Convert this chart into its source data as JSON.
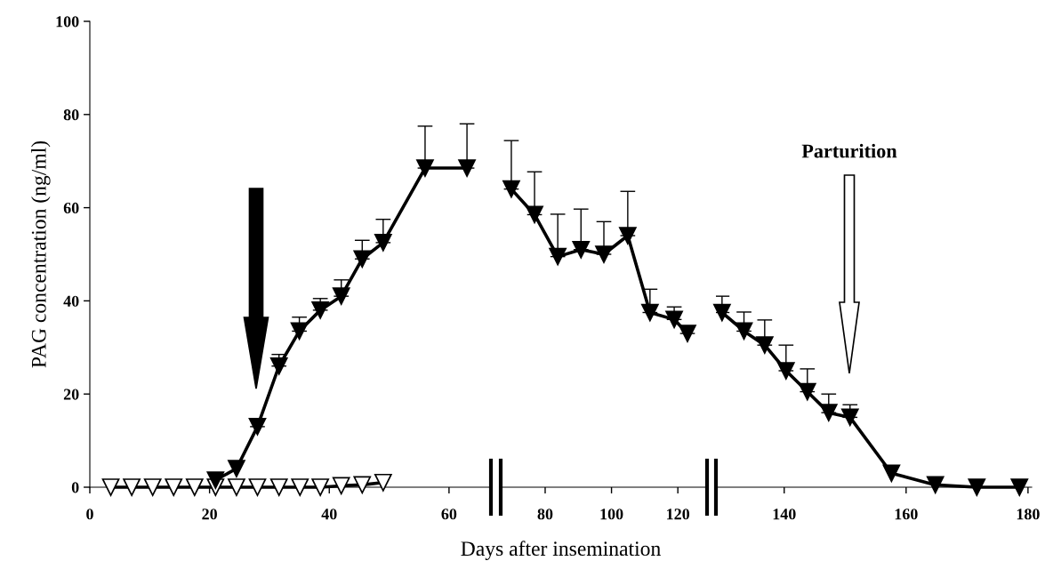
{
  "chart_data": [
    {
      "type": "line",
      "ylabel": "PAG concentration (ng/ml)",
      "xlim": [
        0,
        67
      ],
      "xticks": [
        0,
        20,
        40,
        60
      ],
      "ylim": [
        0,
        100
      ],
      "yticks": [
        0,
        20,
        40,
        60,
        80,
        100
      ],
      "grid": false,
      "marker": "triangle",
      "line_style": "solid",
      "series": [
        {
          "color": "#ffffff",
          "x": [
            3.5,
            7,
            10.5,
            14,
            17.5,
            21,
            24.5,
            28,
            31.6,
            35.1,
            38.5,
            42,
            45.5,
            49
          ],
          "values": [
            0,
            0,
            0,
            0,
            0,
            0,
            0,
            0,
            0,
            0,
            0,
            0.3,
            0.5,
            1
          ]
        },
        {
          "color": "#000000",
          "x": [
            21,
            24.5,
            28,
            31.6,
            35,
            38.5,
            42,
            45.5,
            49,
            56,
            63
          ],
          "values": [
            1.5,
            4,
            13,
            26,
            33.5,
            38,
            41,
            49,
            52.5,
            68.5,
            68.5
          ],
          "errors": [
            null,
            null,
            [
              13,
              14.5
            ],
            [
              26,
              28.5
            ],
            [
              33.5,
              36.5
            ],
            [
              38,
              40.5
            ],
            [
              41,
              44.5
            ],
            [
              49,
              53
            ],
            [
              52.5,
              57.5
            ],
            [
              68.5,
              77.5
            ],
            [
              68.5,
              78
            ]
          ]
        }
      ]
    },
    {
      "type": "line",
      "xlabel": "Days after insemination",
      "xlim": [
        66.6,
        128.8
      ],
      "xticks": [
        80,
        100,
        120
      ],
      "ylim": [
        0,
        100
      ],
      "tick_labels": "x",
      "grid": false,
      "marker": "triangle",
      "line_style": "solid",
      "series": [
        {
          "color": "#000000",
          "x": [
            69.8,
            76.8,
            83.8,
            90.8,
            97.7,
            104.9,
            111.6,
            118.9,
            122.9
          ],
          "values": [
            64,
            58.5,
            49.5,
            51,
            50,
            54,
            37.5,
            36,
            33
          ],
          "errors": [
            [
              64,
              74.4
            ],
            [
              58.5,
              67.7
            ],
            [
              49.5,
              58.6
            ],
            [
              51,
              59.7
            ],
            [
              50,
              57
            ],
            [
              54,
              63.5
            ],
            [
              37.5,
              42.5
            ],
            [
              36,
              38.7
            ],
            [
              33,
              34.5
            ]
          ]
        }
      ]
    },
    {
      "type": "line",
      "xlim": [
        128.8,
        180.6
      ],
      "xticks": [
        140,
        160,
        180
      ],
      "ylim": [
        0,
        100
      ],
      "tick_labels": "x",
      "grid": false,
      "marker": "triangle",
      "line_style": "solid",
      "series": [
        {
          "color": "#000000",
          "x": [
            129.8,
            133.4,
            136.8,
            140.3,
            143.8,
            147.3,
            150.8,
            157.6,
            164.8,
            171.6,
            178.6
          ],
          "values": [
            37.5,
            33.5,
            30.5,
            25,
            20.5,
            16,
            15,
            3,
            0.5,
            0,
            0
          ],
          "errors": [
            [
              37.5,
              41
            ],
            [
              33.5,
              37.6
            ],
            [
              30.5,
              35.9
            ],
            [
              25,
              30.5
            ],
            [
              20.5,
              25.4
            ],
            [
              16,
              20
            ],
            [
              15,
              17.7
            ],
            null,
            null,
            null,
            null
          ]
        }
      ],
      "annotations": [
        "Parturition"
      ]
    }
  ]
}
